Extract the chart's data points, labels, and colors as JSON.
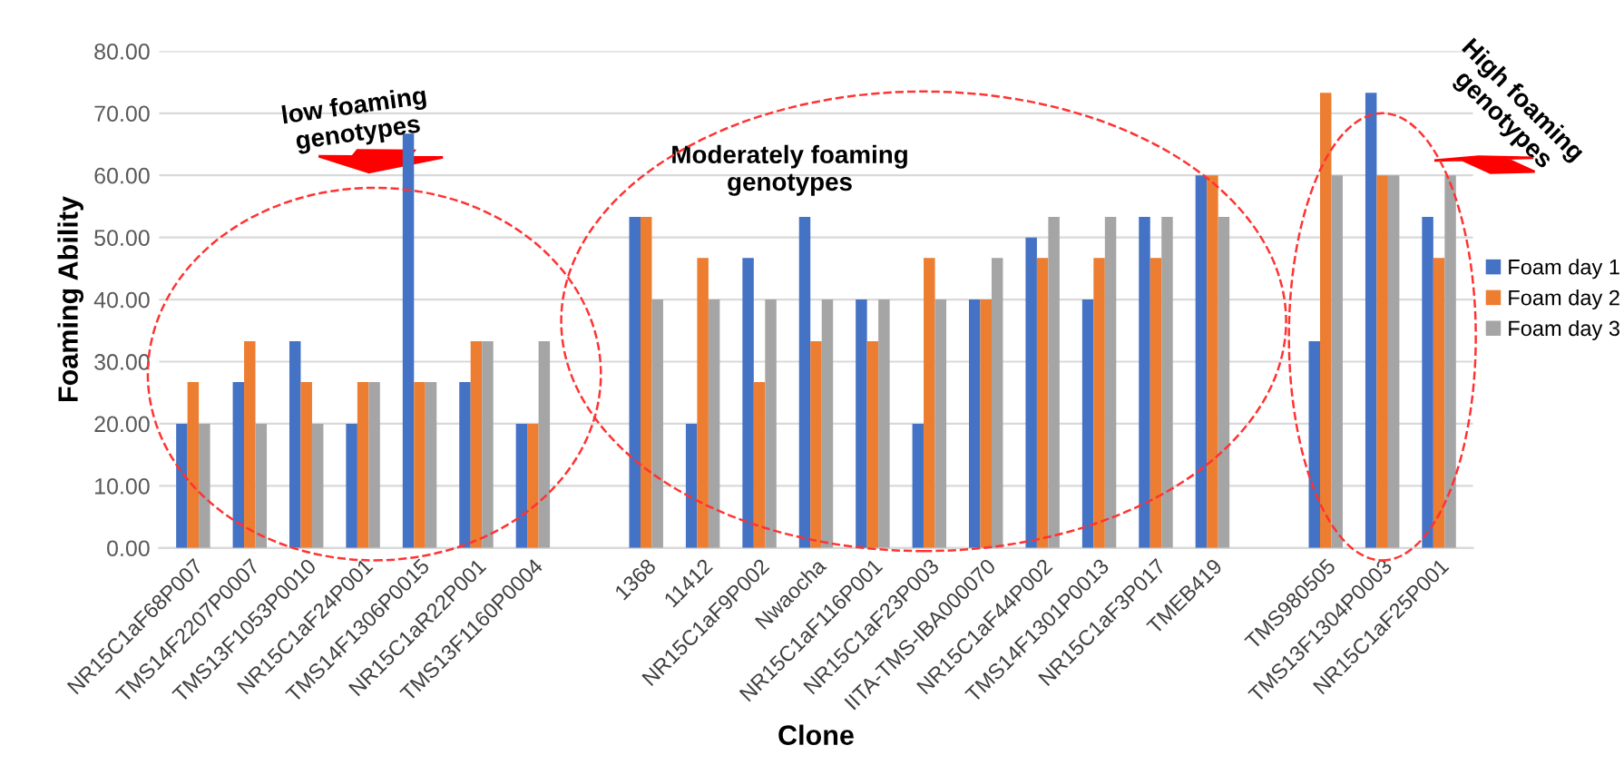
{
  "chart_data": {
    "type": "bar",
    "xlabel": "Clone",
    "ylabel": "Foaming Ability",
    "categories": [
      "NR15C1aF68P007",
      "TMS14F2207P0007",
      "TMS13F1053P0010",
      "NR15C1aF24P001",
      "TMS14F1306P0015",
      "NR15C1aR22P001",
      "TMS13F1160P0004",
      null,
      "1368",
      "11412",
      "NR15C1aF9P002",
      "Nwaocha",
      "NR15C1aF116P001",
      "NR15C1aF23P003",
      "IITA-TMS-IBA000070",
      "NR15C1aF44P002",
      "TMS14F1301P0013",
      "NR15C1aF3P017",
      "TMEB419",
      null,
      "TMS980505",
      "TMS13F1304P0003",
      "NR15C1aF25P001"
    ],
    "series": [
      {
        "name": "Foam day 1",
        "color": "#4472c4",
        "values": [
          20,
          26.7,
          33.3,
          20,
          66.7,
          26.7,
          20,
          null,
          53.3,
          20,
          46.7,
          53.3,
          40,
          20,
          40,
          50,
          40,
          53.3,
          60,
          null,
          33.3,
          73.3,
          53.3
        ]
      },
      {
        "name": "Foam day 2",
        "color": "#ed7d31",
        "values": [
          26.7,
          33.3,
          26.7,
          26.7,
          26.7,
          33.3,
          20,
          null,
          53.3,
          46.7,
          26.7,
          33.3,
          33.3,
          46.7,
          40,
          46.7,
          46.7,
          46.7,
          60,
          null,
          73.3,
          60,
          46.7
        ]
      },
      {
        "name": "Foam day 3",
        "color": "#a5a5a5",
        "values": [
          20,
          20,
          20,
          26.7,
          26.7,
          33.3,
          33.3,
          null,
          40,
          40,
          40,
          40,
          40,
          40,
          46.7,
          53.3,
          53.3,
          53.3,
          53.3,
          null,
          60,
          60,
          60
        ]
      }
    ],
    "ylim": [
      0,
      80
    ],
    "yticks": [
      {
        "value": 0,
        "label": "0.00"
      },
      {
        "value": 10,
        "label": "10.00"
      },
      {
        "value": 20,
        "label": "20.00"
      },
      {
        "value": 30,
        "label": "30.00"
      },
      {
        "value": 40,
        "label": "40.00"
      },
      {
        "value": 50,
        "label": "50.00"
      },
      {
        "value": 60,
        "label": "60.00"
      },
      {
        "value": 70,
        "label": "70.00"
      },
      {
        "value": 80,
        "label": "80.00"
      }
    ],
    "grid": "y",
    "legend": "right",
    "annotations": [
      "low foaming genotypes",
      "Moderately foaming genotypes",
      "High foaming genotypes"
    ]
  }
}
